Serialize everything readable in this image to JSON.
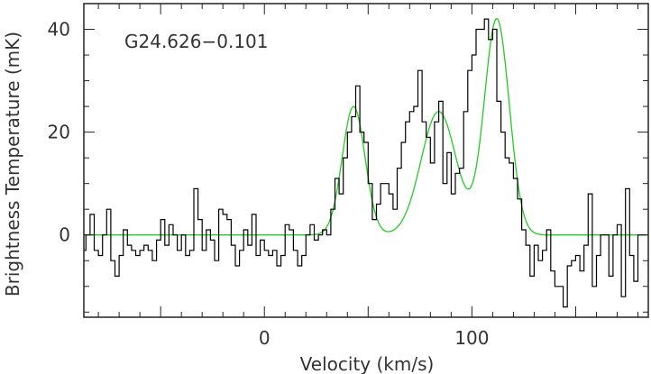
{
  "chart_data": {
    "type": "line",
    "annotation": "G24.626−0.101",
    "xlabel": "Velocity (km/s)",
    "ylabel": "Brightness Temperature (mK)",
    "xlim": [
      -87,
      185
    ],
    "ylim": [
      -16,
      45
    ],
    "xticks": [
      0,
      100
    ],
    "yticks": [
      0,
      20,
      40
    ],
    "grid": false,
    "colors": {
      "spectrum": "#000000",
      "fit": "#22cc22",
      "frame": "#222222"
    },
    "series": [
      {
        "style": "step",
        "x": [
          -87,
          -85,
          -83,
          -81,
          -79,
          -77,
          -75,
          -73,
          -71,
          -69,
          -67,
          -65,
          -63,
          -61,
          -59,
          -57,
          -55,
          -53,
          -51,
          -49,
          -47,
          -45,
          -43,
          -41,
          -39,
          -37,
          -35,
          -33,
          -31,
          -29,
          -27,
          -25,
          -23,
          -21,
          -19,
          -17,
          -15,
          -13,
          -11,
          -9,
          -7,
          -5,
          -3,
          -1,
          1,
          3,
          5,
          7,
          9,
          11,
          13,
          15,
          17,
          19,
          21,
          23,
          25,
          27,
          29,
          31,
          33,
          35,
          37,
          39,
          41,
          43,
          45,
          47,
          49,
          51,
          53,
          55,
          57,
          59,
          61,
          63,
          65,
          67,
          69,
          71,
          73,
          75,
          77,
          79,
          81,
          83,
          85,
          87,
          89,
          91,
          93,
          95,
          97,
          99,
          101,
          103,
          105,
          107,
          109,
          111,
          113,
          115,
          117,
          119,
          121,
          123,
          125,
          127,
          129,
          131,
          133,
          135,
          137,
          139,
          141,
          143,
          145,
          147,
          149,
          151,
          153,
          155,
          157,
          159,
          161,
          163,
          165,
          167,
          169,
          171,
          173,
          175,
          177,
          179,
          181,
          183
        ],
        "y": [
          -3,
          0,
          4,
          -3,
          -4,
          0,
          5,
          -5,
          -8,
          -4,
          1,
          -2,
          -3,
          -4,
          -3,
          -2,
          -3,
          -5,
          -1,
          3,
          -2,
          2,
          0,
          -3,
          0,
          -4,
          -3,
          9,
          3,
          -3,
          1,
          -1,
          -5,
          5,
          4,
          3,
          -2,
          -6,
          -3,
          1,
          -2,
          4,
          -4,
          -1,
          -3,
          -4,
          -3,
          -6,
          -4,
          2,
          1,
          -3,
          -6,
          -4,
          0,
          2,
          -1,
          0,
          1,
          0,
          5,
          11,
          8,
          15,
          20,
          23,
          29,
          20,
          18,
          10,
          3,
          6,
          10,
          10,
          8,
          5,
          13,
          18,
          22,
          24,
          25,
          32,
          22,
          19,
          14,
          22,
          26,
          10,
          16,
          8,
          12,
          13,
          24,
          32,
          35,
          40,
          40,
          42,
          38,
          40,
          26,
          20,
          15,
          14,
          11,
          7,
          1,
          -2,
          -8,
          -2,
          -5,
          -3,
          1,
          -7,
          -10,
          -10,
          -14,
          -6,
          -5,
          -4,
          -7,
          -2,
          8,
          -10,
          -4,
          0,
          0,
          -8,
          0,
          2,
          -12,
          9,
          -4,
          -9,
          0,
          0
        ],
        "color": "#000000"
      },
      {
        "style": "smooth",
        "components": [
          {
            "amplitude": 25,
            "center": 43,
            "sigma": 5.5
          },
          {
            "amplitude": 24,
            "center": 84,
            "sigma": 8.5
          },
          {
            "amplitude": 42,
            "center": 112,
            "sigma": 6
          }
        ],
        "baseline": 0,
        "color": "#22cc22"
      }
    ]
  }
}
